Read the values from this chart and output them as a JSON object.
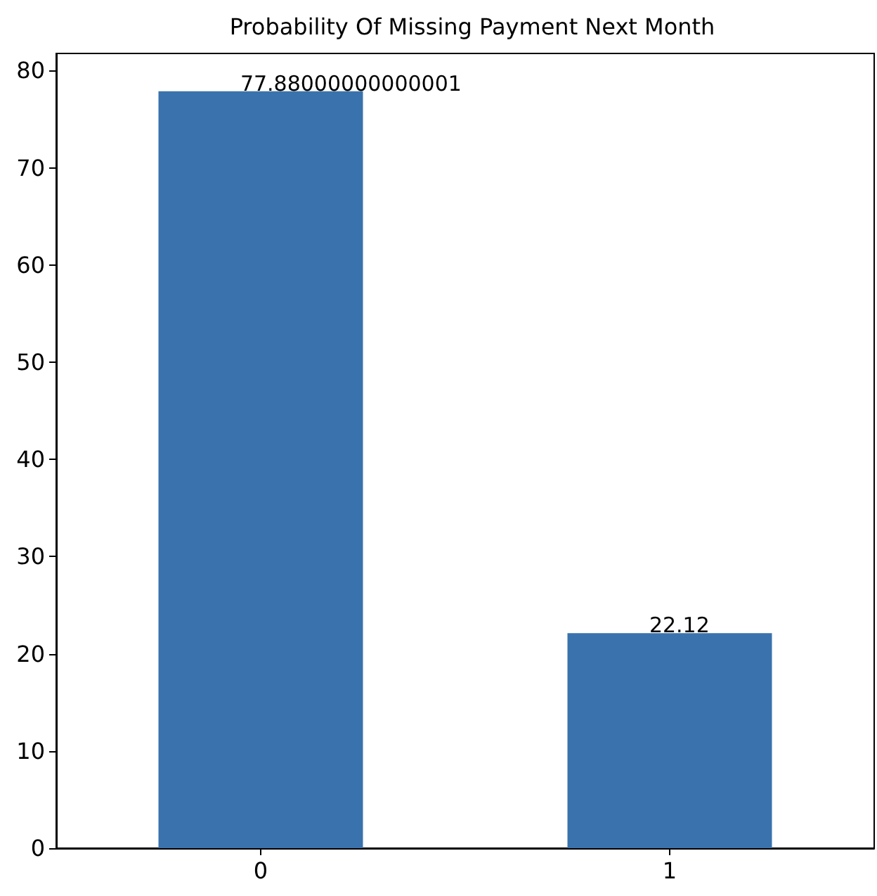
{
  "chart_data": {
    "type": "bar",
    "title": "Probability Of Missing Payment Next Month",
    "categories": [
      "0",
      "1"
    ],
    "series": [
      {
        "color": "#3a72ad",
        "values": [
          77.88000000000001,
          22.12
        ],
        "value_labels": [
          "77.88000000000001",
          "22.12"
        ]
      }
    ],
    "ylim": [
      0,
      81.77
    ],
    "yticks": [
      0,
      10,
      20,
      30,
      40,
      50,
      60,
      70,
      80
    ],
    "grid": false
  }
}
